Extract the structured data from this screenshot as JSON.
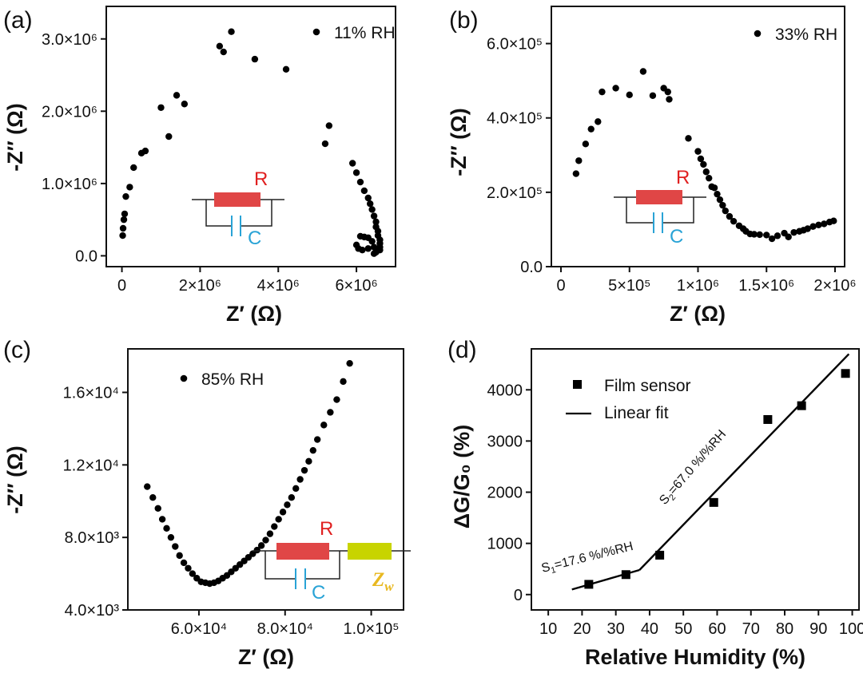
{
  "chart_data": [
    {
      "type": "scatter",
      "panel": "(a)",
      "legend": "11% RH",
      "xlabel": "Z′ (Ω)",
      "ylabel": "-Z″ (Ω)",
      "xlim": [
        -400000.0,
        7000000.0
      ],
      "ylim": [
        -150000.0,
        3450000.0
      ],
      "xticks": [
        {
          "v": 0,
          "t": "0"
        },
        {
          "v": 2000000.0,
          "t": "2×10⁶"
        },
        {
          "v": 4000000.0,
          "t": "4×10⁶"
        },
        {
          "v": 6000000.0,
          "t": "6×10⁶"
        }
      ],
      "yticks": [
        {
          "v": 0,
          "t": "0.0"
        },
        {
          "v": 1000000.0,
          "t": "1.0×10⁶"
        },
        {
          "v": 2000000.0,
          "t": "2.0×10⁶"
        },
        {
          "v": 3000000.0,
          "t": "3.0×10⁶"
        }
      ],
      "x": [
        20000.0,
        30000.0,
        50000.0,
        70000.0,
        100000.0,
        200000.0,
        300000.0,
        500000.0,
        600000.0,
        1000000.0,
        1200000.0,
        1400000.0,
        1600000.0,
        2500000.0,
        2600000.0,
        2800000.0,
        3400000.0,
        4200000.0,
        5200000.0,
        5300000.0,
        5900000.0,
        6000000.0,
        6100000.0,
        6200000.0,
        6300000.0,
        6350000.0,
        6400000.0,
        6450000.0,
        6500000.0,
        6500000.0,
        6550000.0,
        6550000.0,
        6600000.0,
        6600000.0,
        6600000.0,
        6550000.0,
        6500000.0,
        6450000.0,
        6400000.0,
        6300000.0,
        6200000.0,
        6100000.0,
        6000000.0,
        6050000.0,
        6150000.0,
        6300000.0,
        6450000.0,
        6600000.0
      ],
      "y": [
        280000.0,
        380000.0,
        500000.0,
        580000.0,
        820000.0,
        950000.0,
        1220000.0,
        1420000.0,
        1450000.0,
        2050000.0,
        1650000.0,
        2220000.0,
        2100000.0,
        2900000.0,
        2820000.0,
        3100000.0,
        2720000.0,
        2580000.0,
        1550000.0,
        1800000.0,
        1280000.0,
        1150000.0,
        1020000.0,
        900000.0,
        800000.0,
        720000.0,
        640000.0,
        550000.0,
        470000.0,
        400000.0,
        340000.0,
        280000.0,
        220000.0,
        170000.0,
        120000.0,
        80000.0,
        50000.0,
        30000.0,
        200000.0,
        250000.0,
        260000.0,
        270000.0,
        150000.0,
        100000.0,
        80000.0,
        100000.0,
        120000.0,
        80000.0
      ]
    },
    {
      "type": "scatter",
      "panel": "(b)",
      "legend": "33% RH",
      "xlabel": "Z′ (Ω)",
      "ylabel": "-Z″ (Ω)",
      "xlim": [
        -70000.0,
        2070000.0
      ],
      "ylim": [
        0,
        700000.0
      ],
      "xticks": [
        {
          "v": 0,
          "t": "0"
        },
        {
          "v": 500000.0,
          "t": "5×10⁵"
        },
        {
          "v": 1000000.0,
          "t": "1×10⁶"
        },
        {
          "v": 1500000.0,
          "t": "1.5×10⁶"
        },
        {
          "v": 2000000.0,
          "t": "2×10⁶"
        }
      ],
      "yticks": [
        {
          "v": 0,
          "t": "0.0"
        },
        {
          "v": 200000.0,
          "t": "2.0×10⁵"
        },
        {
          "v": 400000.0,
          "t": "4.0×10⁵"
        },
        {
          "v": 600000.0,
          "t": "6.0×10⁵"
        }
      ],
      "x": [
        110000.0,
        130000.0,
        180000.0,
        220000.0,
        270000.0,
        300000.0,
        400000.0,
        500000.0,
        600000.0,
        670000.0,
        750000.0,
        780000.0,
        790000.0,
        930000.0,
        1000000.0,
        1020000.0,
        1040000.0,
        1060000.0,
        1080000.0,
        1100000.0,
        1120000.0,
        1140000.0,
        1160000.0,
        1180000.0,
        1200000.0,
        1230000.0,
        1260000.0,
        1300000.0,
        1330000.0,
        1350000.0,
        1380000.0,
        1410000.0,
        1450000.0,
        1500000.0,
        1540000.0,
        1580000.0,
        1630000.0,
        1660000.0,
        1700000.0,
        1740000.0,
        1770000.0,
        1800000.0,
        1840000.0,
        1880000.0,
        1920000.0,
        1960000.0,
        1990000.0
      ],
      "y": [
        250000.0,
        285000.0,
        330000.0,
        370000.0,
        390000.0,
        470000.0,
        480000.0,
        462000.0,
        525000.0,
        460000.0,
        480000.0,
        470000.0,
        450000.0,
        345000.0,
        310000.0,
        290000.0,
        275000.0,
        255000.0,
        238000.0,
        215000.0,
        212000.0,
        195000.0,
        180000.0,
        165000.0,
        150000.0,
        135000.0,
        122000.0,
        110000.0,
        102000.0,
        95000.0,
        88000.0,
        87000.0,
        86000.0,
        85000.0,
        75000.0,
        83000.0,
        90000.0,
        80000.0,
        92000.0,
        95000.0,
        98000.0,
        102000.0,
        108000.0,
        112000.0,
        115000.0,
        120000.0,
        123000.0
      ]
    },
    {
      "type": "scatter",
      "panel": "(c)",
      "legend": "85% RH",
      "xlabel": "Z′ (Ω)",
      "ylabel": "-Z″ (Ω)",
      "xlim": [
        43500.0,
        107500.0
      ],
      "ylim": [
        4000.0,
        18400.0
      ],
      "xticks": [
        {
          "v": 60000.0,
          "t": "6.0×10⁴"
        },
        {
          "v": 80000.0,
          "t": "8.0×10⁴"
        },
        {
          "v": 100000.0,
          "t": "1.0×10⁵"
        }
      ],
      "yticks": [
        {
          "v": 4000.0,
          "t": "4.0×10³"
        },
        {
          "v": 8000.0,
          "t": "8.0×10³"
        },
        {
          "v": 12000.0,
          "t": "1.2×10⁴"
        },
        {
          "v": 16000.0,
          "t": "1.6×10⁴"
        }
      ],
      "x": [
        48000.0,
        49300.0,
        50500.0,
        51500.0,
        52500.0,
        53500.0,
        54500.0,
        55500.0,
        56500.0,
        57500.0,
        58500.0,
        59500.0,
        60500.0,
        61500.0,
        62500.0,
        63500.0,
        64500.0,
        65500.0,
        66500.0,
        67500.0,
        68500.0,
        69500.0,
        70500.0,
        71500.0,
        72500.0,
        73500.0,
        74500.0,
        75500.0,
        76500.0,
        77500.0,
        78500.0,
        79500.0,
        80500.0,
        81500.0,
        82500.0,
        83500.0,
        84500.0,
        85500.0,
        86500.0,
        87500.0,
        89000.0,
        90500.0,
        92000.0,
        93500.0,
        95000.0
      ],
      "y": [
        10800.0,
        10200.0,
        9600.0,
        9000.0,
        8500.0,
        8000.0,
        7500.0,
        7000.0,
        6600.0,
        6300.0,
        6000.0,
        5750.0,
        5550.0,
        5500.0,
        5450.0,
        5500.0,
        5600.0,
        5750.0,
        5900.0,
        6100.0,
        6300.0,
        6500.0,
        6700.0,
        6900.0,
        7100.0,
        7300.0,
        7550.0,
        7850.0,
        8200.0,
        8600.0,
        9000.0,
        9400.0,
        9800.0,
        10200.0,
        10700.0,
        11200.0,
        11700.0,
        12200.0,
        12800.0,
        13400.0,
        14200.0,
        14900.0,
        15600.0,
        16600.0,
        17600.0
      ]
    },
    {
      "type": "scatter",
      "panel": "(d)",
      "xlabel": "Relative Humidity (%)",
      "ylabel": "ΔG/G₀ (%)",
      "xlim": [
        5,
        102
      ],
      "ylim": [
        -300,
        4800
      ],
      "xticks": [
        {
          "v": 10,
          "t": "10"
        },
        {
          "v": 20,
          "t": "20"
        },
        {
          "v": 30,
          "t": "30"
        },
        {
          "v": 40,
          "t": "40"
        },
        {
          "v": 50,
          "t": "50"
        },
        {
          "v": 60,
          "t": "60"
        },
        {
          "v": 70,
          "t": "70"
        },
        {
          "v": 80,
          "t": "80"
        },
        {
          "v": 90,
          "t": "90"
        },
        {
          "v": 100,
          "t": "100"
        }
      ],
      "yticks": [
        {
          "v": 0,
          "t": "0"
        },
        {
          "v": 1000,
          "t": "1000"
        },
        {
          "v": 2000,
          "t": "2000"
        },
        {
          "v": 3000,
          "t": "3000"
        },
        {
          "v": 4000,
          "t": "4000"
        }
      ],
      "series": [
        {
          "name": "Film sensor",
          "x": [
            22,
            33,
            43,
            59,
            75,
            85,
            98
          ],
          "values": [
            200,
            390,
            770,
            1800,
            3420,
            3690,
            4320
          ]
        },
        {
          "name": "Linear fit",
          "segments": [
            {
              "x": [
                17,
                37
              ],
              "values": [
                100,
                480
              ]
            },
            {
              "x": [
                37,
                99
              ],
              "values": [
                480,
                4700
              ]
            }
          ]
        }
      ],
      "annotations": {
        "s1_prefix": "S",
        "s1_sub": "1",
        "s1_rest": "=17.6 %/%RH",
        "s2_prefix": "S",
        "s2_sub": "2",
        "s2_rest": "=67.0 %/%RH"
      }
    }
  ],
  "circuit": {
    "r_label": "R",
    "c_label": "C",
    "zw_label": "Z",
    "zw_sub": "w",
    "colors": {
      "resistor": "#e04646",
      "capacitor": "#29a3d6",
      "warburg": "#c8d400",
      "zw_text": "#e8b820",
      "r_text": "#e02020"
    }
  },
  "legend_d": {
    "film": "Film sensor",
    "fit": "Linear fit"
  }
}
